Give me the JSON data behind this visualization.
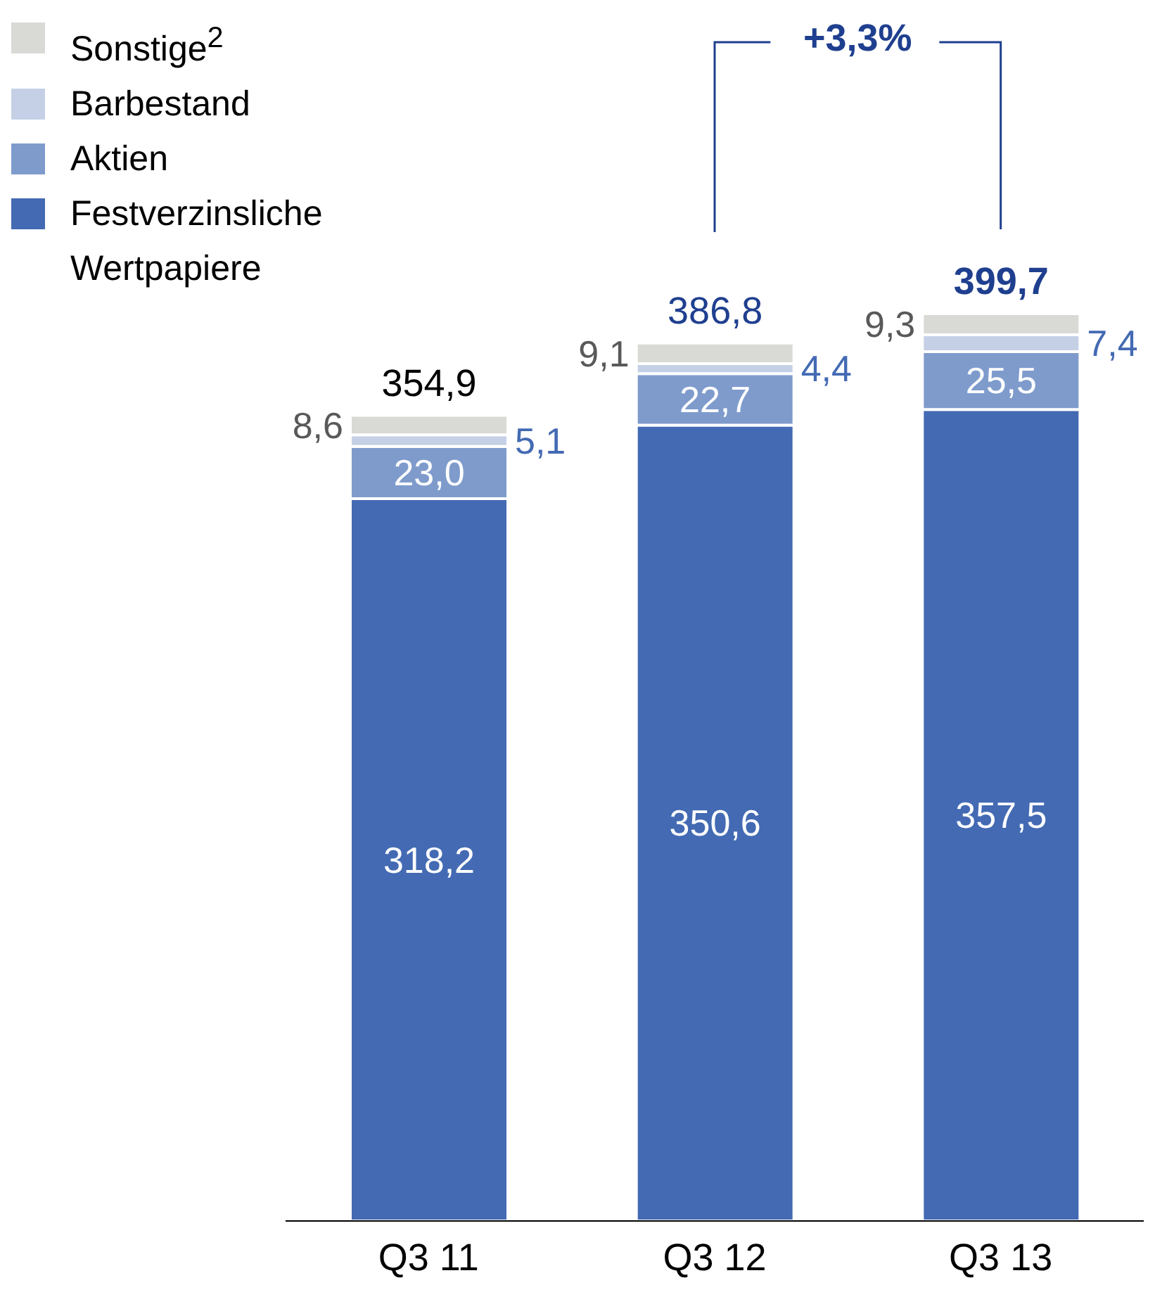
{
  "chart_data": {
    "type": "bar",
    "stacked": true,
    "categories": [
      "Q3 11",
      "Q3 12",
      "Q3 13"
    ],
    "series": [
      {
        "name": "Festverzinsliche Wertpapiere",
        "color": "#436ab3",
        "values": [
          318.2,
          350.6,
          357.5
        ],
        "value_labels": [
          "318,2",
          "350,6",
          "357,5"
        ]
      },
      {
        "name": "Aktien",
        "color": "#7f9bcc",
        "values": [
          23.0,
          22.7,
          25.5
        ],
        "value_labels": [
          "23,0",
          "22,7",
          "25,5"
        ]
      },
      {
        "name": "Barbestand",
        "color": "#c5d0e6",
        "values": [
          5.1,
          4.4,
          7.4
        ],
        "value_labels": [
          "5,1",
          "4,4",
          "7,4"
        ]
      },
      {
        "name": "Sonstige$^{2}$",
        "color": "#d9d9d6",
        "values": [
          8.6,
          9.1,
          9.3
        ],
        "value_labels": [
          "8,6",
          "9,1",
          "9,3"
        ]
      }
    ],
    "totals": [
      "354,9",
      "386,8",
      "399,7"
    ],
    "annotations": [
      "+3,3%"
    ],
    "legend": "top left"
  }
}
